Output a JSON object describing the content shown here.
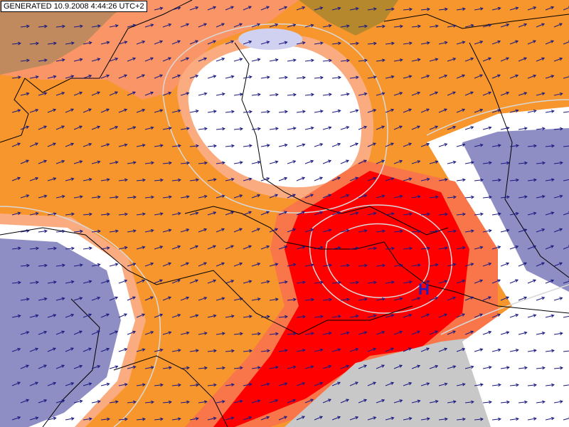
{
  "header": {
    "generated": "GENERATED 10.9.2008 4:44:26 UTC+2"
  },
  "pressure_center": {
    "label": "H"
  }
}
